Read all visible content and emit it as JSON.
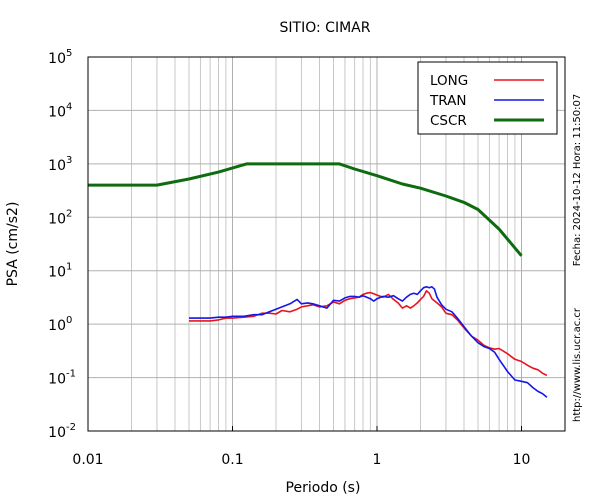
{
  "chart_data": {
    "type": "line",
    "title": "SITIO: CIMAR",
    "xlabel": "Periodo (s)",
    "ylabel": "PSA (cm/s2)",
    "xscale": "log",
    "yscale": "log",
    "xlim": [
      0.01,
      20
    ],
    "ylim": [
      0.01,
      100000
    ],
    "x_tick_labels": [
      "0.01",
      "0.1",
      "1",
      "10"
    ],
    "x_tick_values": [
      0.01,
      0.1,
      1,
      10
    ],
    "y_tick_labels": [
      {
        "base": "10",
        "exp": "-2"
      },
      {
        "base": "10",
        "exp": "-1"
      },
      {
        "base": "10",
        "exp": "0"
      },
      {
        "base": "10",
        "exp": "1"
      },
      {
        "base": "10",
        "exp": "2"
      },
      {
        "base": "10",
        "exp": "3"
      },
      {
        "base": "10",
        "exp": "4"
      },
      {
        "base": "10",
        "exp": "5"
      }
    ],
    "y_tick_values": [
      0.01,
      0.1,
      1,
      10,
      100,
      1000,
      10000,
      100000
    ],
    "grid": true,
    "legend_position": "top-right",
    "series": [
      {
        "name": "LONG",
        "color": "#e8141c",
        "points": [
          [
            0.05,
            1.15
          ],
          [
            0.06,
            1.15
          ],
          [
            0.07,
            1.15
          ],
          [
            0.08,
            1.2
          ],
          [
            0.09,
            1.3
          ],
          [
            0.1,
            1.3
          ],
          [
            0.12,
            1.35
          ],
          [
            0.14,
            1.4
          ],
          [
            0.16,
            1.6
          ],
          [
            0.18,
            1.6
          ],
          [
            0.2,
            1.55
          ],
          [
            0.22,
            1.8
          ],
          [
            0.25,
            1.7
          ],
          [
            0.28,
            1.9
          ],
          [
            0.3,
            2.1
          ],
          [
            0.33,
            2.2
          ],
          [
            0.36,
            2.3
          ],
          [
            0.4,
            2.1
          ],
          [
            0.45,
            2.2
          ],
          [
            0.5,
            2.6
          ],
          [
            0.55,
            2.4
          ],
          [
            0.6,
            2.8
          ],
          [
            0.65,
            3.0
          ],
          [
            0.7,
            3.1
          ],
          [
            0.75,
            3.2
          ],
          [
            0.8,
            3.6
          ],
          [
            0.85,
            3.8
          ],
          [
            0.9,
            3.9
          ],
          [
            0.95,
            3.7
          ],
          [
            1.0,
            3.5
          ],
          [
            1.1,
            3.2
          ],
          [
            1.2,
            3.6
          ],
          [
            1.3,
            2.9
          ],
          [
            1.4,
            2.5
          ],
          [
            1.5,
            2.0
          ],
          [
            1.6,
            2.2
          ],
          [
            1.7,
            2.0
          ],
          [
            1.8,
            2.2
          ],
          [
            1.9,
            2.5
          ],
          [
            2.0,
            2.9
          ],
          [
            2.1,
            3.3
          ],
          [
            2.2,
            4.2
          ],
          [
            2.3,
            3.8
          ],
          [
            2.4,
            3.0
          ],
          [
            2.6,
            2.5
          ],
          [
            2.8,
            2.1
          ],
          [
            3.0,
            1.6
          ],
          [
            3.3,
            1.5
          ],
          [
            3.6,
            1.2
          ],
          [
            4.0,
            0.85
          ],
          [
            4.5,
            0.6
          ],
          [
            5.0,
            0.5
          ],
          [
            5.5,
            0.4
          ],
          [
            6.0,
            0.36
          ],
          [
            6.5,
            0.34
          ],
          [
            7.0,
            0.35
          ],
          [
            8.0,
            0.28
          ],
          [
            9.0,
            0.22
          ],
          [
            10.0,
            0.2
          ],
          [
            11.0,
            0.17
          ],
          [
            12.0,
            0.15
          ],
          [
            13.0,
            0.14
          ],
          [
            14.0,
            0.12
          ],
          [
            15.0,
            0.11
          ]
        ]
      },
      {
        "name": "TRAN",
        "color": "#1417e8",
        "points": [
          [
            0.05,
            1.3
          ],
          [
            0.06,
            1.3
          ],
          [
            0.07,
            1.3
          ],
          [
            0.08,
            1.35
          ],
          [
            0.09,
            1.35
          ],
          [
            0.1,
            1.4
          ],
          [
            0.12,
            1.4
          ],
          [
            0.14,
            1.5
          ],
          [
            0.16,
            1.5
          ],
          [
            0.18,
            1.7
          ],
          [
            0.2,
            1.9
          ],
          [
            0.22,
            2.1
          ],
          [
            0.25,
            2.4
          ],
          [
            0.28,
            2.9
          ],
          [
            0.3,
            2.4
          ],
          [
            0.33,
            2.5
          ],
          [
            0.36,
            2.4
          ],
          [
            0.4,
            2.2
          ],
          [
            0.45,
            2.0
          ],
          [
            0.5,
            2.8
          ],
          [
            0.55,
            2.7
          ],
          [
            0.6,
            3.1
          ],
          [
            0.65,
            3.3
          ],
          [
            0.7,
            3.3
          ],
          [
            0.75,
            3.2
          ],
          [
            0.8,
            3.4
          ],
          [
            0.85,
            3.2
          ],
          [
            0.9,
            3.0
          ],
          [
            0.95,
            2.7
          ],
          [
            1.0,
            3.0
          ],
          [
            1.1,
            3.3
          ],
          [
            1.2,
            3.2
          ],
          [
            1.3,
            3.4
          ],
          [
            1.4,
            3.0
          ],
          [
            1.5,
            2.7
          ],
          [
            1.6,
            3.2
          ],
          [
            1.7,
            3.6
          ],
          [
            1.8,
            3.8
          ],
          [
            1.9,
            3.6
          ],
          [
            2.0,
            4.2
          ],
          [
            2.1,
            4.8
          ],
          [
            2.2,
            5.0
          ],
          [
            2.3,
            4.8
          ],
          [
            2.4,
            5.0
          ],
          [
            2.5,
            4.5
          ],
          [
            2.6,
            3.2
          ],
          [
            2.8,
            2.3
          ],
          [
            3.0,
            1.9
          ],
          [
            3.3,
            1.7
          ],
          [
            3.6,
            1.3
          ],
          [
            4.0,
            0.9
          ],
          [
            4.5,
            0.6
          ],
          [
            5.0,
            0.45
          ],
          [
            5.5,
            0.38
          ],
          [
            6.0,
            0.35
          ],
          [
            6.5,
            0.3
          ],
          [
            7.0,
            0.22
          ],
          [
            8.0,
            0.13
          ],
          [
            9.0,
            0.09
          ],
          [
            10.0,
            0.085
          ],
          [
            11.0,
            0.08
          ],
          [
            12.0,
            0.065
          ],
          [
            13.0,
            0.055
          ],
          [
            14.0,
            0.05
          ],
          [
            15.0,
            0.043
          ]
        ]
      },
      {
        "name": "CSCR",
        "color": "#0f6b0f",
        "points": [
          [
            0.01,
            400
          ],
          [
            0.03,
            400
          ],
          [
            0.05,
            520
          ],
          [
            0.08,
            700
          ],
          [
            0.125,
            1000
          ],
          [
            0.55,
            1000
          ],
          [
            0.7,
            800
          ],
          [
            1.0,
            600
          ],
          [
            1.5,
            420
          ],
          [
            2.0,
            350
          ],
          [
            3.0,
            250
          ],
          [
            4.0,
            190
          ],
          [
            5.0,
            140
          ],
          [
            7.0,
            60
          ],
          [
            10.0,
            19
          ]
        ]
      }
    ]
  },
  "side_texts": {
    "date": "Fecha: 2024-10-12  Hora: 11:50:07",
    "url": "http://www.lis.ucr.ac.cr"
  }
}
